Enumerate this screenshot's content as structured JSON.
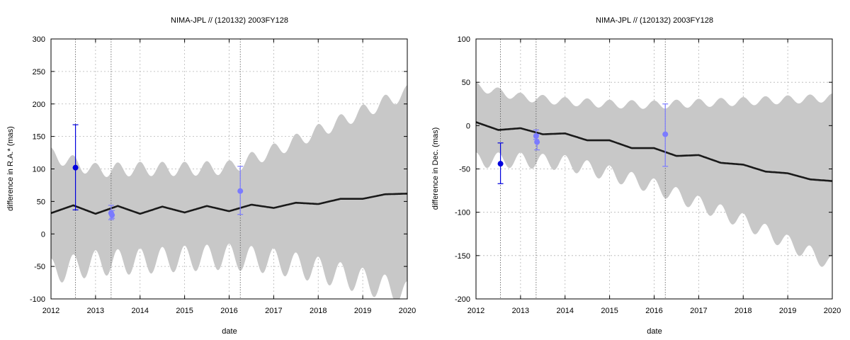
{
  "chart_data": [
    {
      "type": "line",
      "title": "NIMA-JPL // (120132) 2003FY128",
      "xlabel": "date",
      "ylabel": "difference in R.A.* (mas)",
      "xlim": [
        2012,
        2020
      ],
      "ylim": [
        -100,
        300
      ],
      "xticks": [
        "2012",
        "2013",
        "2014",
        "2015",
        "2016",
        "2017",
        "2018",
        "2019",
        "2020"
      ],
      "yticks": [
        "-100",
        "-50",
        "0",
        "50",
        "100",
        "150",
        "200",
        "250",
        "300"
      ],
      "grid": true,
      "uncertainty_band": {
        "color": "#c8c8c8",
        "x": [
          2012.0,
          2013.0,
          2014.0,
          2015.0,
          2016.0,
          2017.0,
          2018.0,
          2019.0,
          2020.0
        ],
        "upper": [
          122,
          98,
          100,
          100,
          102,
          128,
          158,
          188,
          218
        ],
        "lower": [
          -58,
          -45,
          -42,
          -38,
          -35,
          -42,
          -55,
          -72,
          -93
        ],
        "osc_amplitude": 20
      },
      "nominal": {
        "color": "#1a1a1a",
        "x": [
          2012.0,
          2012.5,
          2013.0,
          2013.5,
          2014.0,
          2014.5,
          2015.0,
          2015.5,
          2016.0,
          2016.5,
          2017.0,
          2017.5,
          2018.0,
          2018.5,
          2019.0,
          2019.5,
          2020.0
        ],
        "y": [
          32,
          44,
          31,
          43,
          31,
          42,
          33,
          43,
          35,
          45,
          40,
          48,
          46,
          54,
          54,
          61,
          62
        ]
      },
      "observations": [
        {
          "x": 2012.55,
          "y": 102,
          "err_low": 37,
          "err_high": 168,
          "color": "#0000dd"
        },
        {
          "x": 2013.35,
          "y": 32,
          "err_low": 22,
          "err_high": 44,
          "color": "#7b7bff"
        },
        {
          "x": 2013.37,
          "y": 29,
          "err_low": 24,
          "err_high": 36,
          "color": "#7b7bff"
        },
        {
          "x": 2016.25,
          "y": 66,
          "err_low": 30,
          "err_high": 104,
          "color": "#7b7bff"
        }
      ],
      "vlines": [
        2012.55,
        2013.35,
        2016.25
      ]
    },
    {
      "type": "line",
      "title": "NIMA-JPL // (120132) 2003FY128",
      "xlabel": "date",
      "ylabel": "difference in Dec. (mas)",
      "xlim": [
        2012,
        2020
      ],
      "ylim": [
        -200,
        100
      ],
      "xticks": [
        "2012",
        "2013",
        "2014",
        "2015",
        "2016",
        "2017",
        "2018",
        "2019",
        "2020"
      ],
      "yticks": [
        "-200",
        "-150",
        "-100",
        "-50",
        "0",
        "50",
        "100"
      ],
      "grid": true,
      "uncertainty_band": {
        "color": "#c8c8c8",
        "x": [
          2012.0,
          2013.0,
          2014.0,
          2015.0,
          2016.0,
          2017.0,
          2018.0,
          2019.0,
          2020.0
        ],
        "upper": [
          45,
          33,
          28,
          25,
          24,
          26,
          28,
          30,
          32
        ],
        "lower": [
          -40,
          -40,
          -43,
          -55,
          -70,
          -90,
          -110,
          -135,
          -160
        ],
        "osc_amplitude": 9
      },
      "nominal": {
        "color": "#1a1a1a",
        "x": [
          2012.0,
          2012.5,
          2013.0,
          2013.5,
          2014.0,
          2014.5,
          2015.0,
          2015.5,
          2016.0,
          2016.5,
          2017.0,
          2017.5,
          2018.0,
          2018.5,
          2019.0,
          2019.5,
          2020.0
        ],
        "y": [
          4,
          -5,
          -3,
          -10,
          -9,
          -17,
          -17,
          -26,
          -26,
          -35,
          -34,
          -43,
          -45,
          -53,
          -55,
          -62,
          -64
        ]
      },
      "observations": [
        {
          "x": 2012.55,
          "y": -44,
          "err_low": -67,
          "err_high": -20,
          "color": "#0000dd"
        },
        {
          "x": 2013.35,
          "y": -12,
          "err_low": -16,
          "err_high": -5,
          "color": "#7b7bff"
        },
        {
          "x": 2013.37,
          "y": -19,
          "err_low": -28,
          "err_high": -10,
          "color": "#7b7bff"
        },
        {
          "x": 2016.25,
          "y": -10,
          "err_low": -47,
          "err_high": 25,
          "color": "#7b7bff"
        }
      ],
      "vlines": [
        2012.55,
        2013.35,
        2016.25
      ]
    }
  ]
}
